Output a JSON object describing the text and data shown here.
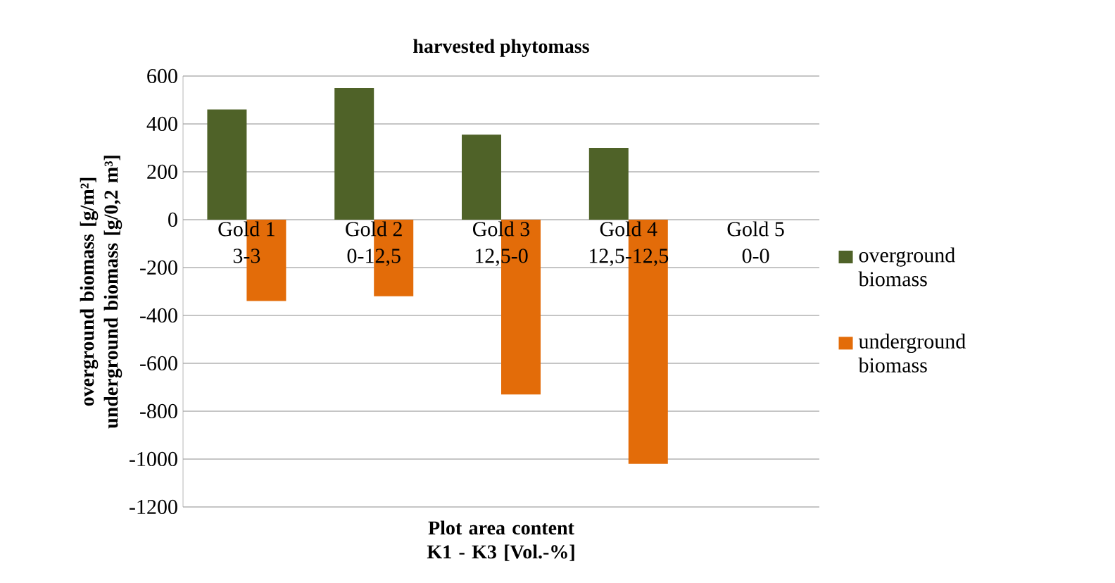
{
  "chart_data": {
    "type": "bar",
    "title": "harvested phytomass",
    "xlabel": "Plot area content K1 - K3 [Vol.-%]",
    "ylabel": "overground biomass [g/m²] underground biomass [g/0,2 m³]",
    "categories": [
      "Gold 1 3-3",
      "Gold 2 0-12,5",
      "Gold 3 12,5-0",
      "Gold 4 12,5-12,5",
      "Gold 5 0-0"
    ],
    "series": [
      {
        "name": "overground biomass",
        "color": "#4f6228",
        "values": [
          460,
          550,
          355,
          300,
          null
        ]
      },
      {
        "name": "underground biomass",
        "color": "#e36c09",
        "values": [
          -340,
          -320,
          -730,
          -1020,
          null
        ]
      }
    ],
    "ylim": [
      -1200,
      600
    ],
    "yticks": [
      -1200,
      -1000,
      -800,
      -600,
      -400,
      -200,
      0,
      200,
      400,
      600
    ],
    "grid": "y",
    "legend": "right"
  }
}
